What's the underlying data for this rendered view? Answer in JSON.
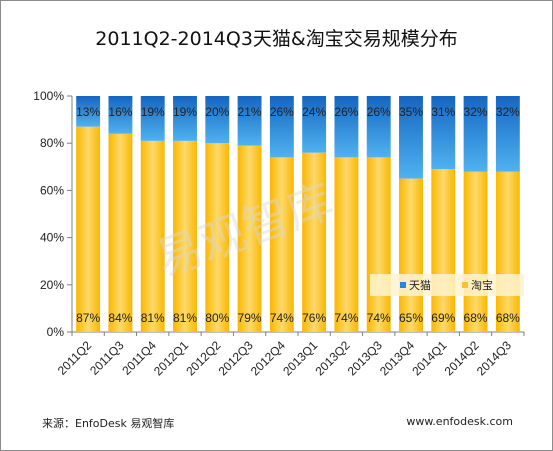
{
  "chart_data": {
    "type": "bar",
    "stacked": true,
    "percent": true,
    "title": "2011Q2-2014Q3天猫&淘宝交易规模分布",
    "categories": [
      "2011Q2",
      "2011Q3",
      "2011Q4",
      "2012Q1",
      "2012Q2",
      "2012Q3",
      "2012Q4",
      "2013Q1",
      "2013Q2",
      "2013Q3",
      "2013Q4",
      "2014Q1",
      "2014Q2",
      "2014Q3"
    ],
    "series": [
      {
        "name": "淘宝",
        "values": [
          87,
          84,
          81,
          81,
          80,
          79,
          74,
          76,
          74,
          74,
          65,
          69,
          68,
          68
        ],
        "color": "#fbc02d"
      },
      {
        "name": "天猫",
        "values": [
          13,
          16,
          19,
          19,
          20,
          21,
          26,
          24,
          26,
          26,
          35,
          31,
          32,
          32
        ],
        "color": "#1e88e5"
      }
    ],
    "yticks": [
      "0%",
      "20%",
      "40%",
      "60%",
      "80%",
      "100%"
    ],
    "ylim": [
      0,
      100
    ],
    "legend": "bottom-right, inside plot",
    "grid": false
  },
  "footer": {
    "source": "来源：EnfoDesk 易观智库",
    "url": "www.enfodesk.com"
  },
  "watermark": "易观智库"
}
